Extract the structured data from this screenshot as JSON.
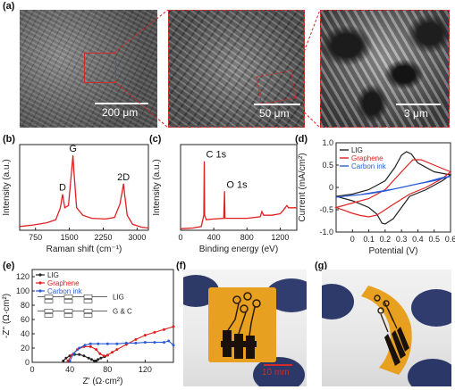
{
  "panels": {
    "a": "(a)",
    "b": "(b)",
    "c": "(c)",
    "d": "(d)",
    "e": "(e)",
    "f": "(f)",
    "g": "(g)"
  },
  "sem": {
    "scale1": "200 μm",
    "scale2": "50 μm",
    "scale3": "3 μm"
  },
  "photo": {
    "scale_label": "10 mm"
  },
  "colors": {
    "lig": "#222222",
    "graphene": "#e02020",
    "carbon_ink": "#2a5bd7",
    "annotation": "#d42a2a",
    "tape": "#e8a020"
  },
  "chart_data": [
    {
      "id": "b",
      "type": "line",
      "xlabel": "Raman shift (cm⁻¹)",
      "ylabel": "Intensity (a.u.)",
      "xlim": [
        400,
        3250
      ],
      "xticks": [
        "750",
        "1500",
        "2250",
        "3000"
      ],
      "peak_labels": [
        {
          "text": "D",
          "x": 1350
        },
        {
          "text": "G",
          "x": 1580
        },
        {
          "text": "2D",
          "x": 2700
        }
      ],
      "series": [
        {
          "x": [
            400,
            700,
            1000,
            1200,
            1300,
            1350,
            1400,
            1480,
            1560,
            1580,
            1600,
            1660,
            1800,
            2000,
            2300,
            2500,
            2620,
            2680,
            2700,
            2720,
            2780,
            2900,
            3100,
            3250
          ],
          "y": [
            0.05,
            0.07,
            0.1,
            0.14,
            0.3,
            0.48,
            0.3,
            0.33,
            0.86,
            1.0,
            0.8,
            0.3,
            0.2,
            0.16,
            0.15,
            0.17,
            0.35,
            0.55,
            0.62,
            0.5,
            0.2,
            0.08,
            0.04,
            0.03
          ],
          "color": "#e02020"
        }
      ]
    },
    {
      "id": "c",
      "type": "line",
      "xlabel": "Binding energy (eV)",
      "ylabel": "Intensity (a.u.)",
      "xlim": [
        0,
        1400
      ],
      "xticks": [
        "0",
        "400",
        "800",
        "1200"
      ],
      "peak_labels": [
        {
          "text": "C 1s",
          "x": 285
        },
        {
          "text": "O 1s",
          "x": 532
        }
      ],
      "series": [
        {
          "x": [
            0,
            150,
            250,
            280,
            285,
            290,
            310,
            400,
            520,
            530,
            535,
            545,
            600,
            800,
            960,
            980,
            1000,
            1100,
            1200,
            1240,
            1280,
            1300,
            1400
          ],
          "y": [
            0.02,
            0.03,
            0.05,
            0.2,
            0.92,
            0.2,
            0.14,
            0.15,
            0.16,
            0.52,
            0.16,
            0.16,
            0.16,
            0.16,
            0.18,
            0.25,
            0.2,
            0.2,
            0.22,
            0.27,
            0.33,
            0.3,
            0.3
          ],
          "color": "#e02020"
        }
      ]
    },
    {
      "id": "d",
      "type": "line",
      "xlabel": "Potential (V)",
      "ylabel": "Current (mA/cm²)",
      "xlim": [
        -0.1,
        0.6
      ],
      "ylim": [
        -1.0,
        1.0
      ],
      "xticks": [
        "0",
        "0.1",
        "0.2",
        "0.3",
        "0.4",
        "0.5",
        "0.6"
      ],
      "yticks": [
        "-1.0",
        "-0.5",
        "0",
        "0.5",
        "1.0"
      ],
      "legend": "top-left",
      "series": [
        {
          "name": "LIG",
          "color": "#222222",
          "x": [
            -0.1,
            0.0,
            0.1,
            0.2,
            0.26,
            0.3,
            0.33,
            0.36,
            0.4,
            0.5,
            0.6,
            0.55,
            0.45,
            0.35,
            0.3,
            0.25,
            0.2,
            0.18,
            0.15,
            0.1,
            0.0,
            -0.1
          ],
          "y": [
            -0.2,
            -0.15,
            -0.05,
            0.15,
            0.45,
            0.72,
            0.8,
            0.75,
            0.55,
            0.35,
            0.28,
            0.15,
            -0.05,
            -0.2,
            -0.45,
            -0.7,
            -0.82,
            -0.8,
            -0.6,
            -0.45,
            -0.3,
            -0.2
          ]
        },
        {
          "name": "Graphene",
          "color": "#e02020",
          "x": [
            -0.1,
            0.0,
            0.1,
            0.2,
            0.3,
            0.37,
            0.42,
            0.5,
            0.6,
            0.55,
            0.45,
            0.35,
            0.25,
            0.15,
            0.1,
            0.05,
            0.0,
            -0.1
          ],
          "y": [
            -0.45,
            -0.35,
            -0.25,
            -0.05,
            0.35,
            0.62,
            0.62,
            0.5,
            0.35,
            0.2,
            0.0,
            -0.15,
            -0.38,
            -0.62,
            -0.66,
            -0.63,
            -0.58,
            -0.45
          ]
        },
        {
          "name": "Carbon ink",
          "color": "#2a5bd7",
          "x": [
            -0.1,
            0.0,
            0.1,
            0.2,
            0.3,
            0.4,
            0.5,
            0.6,
            0.55,
            0.45,
            0.35,
            0.25,
            0.15,
            0.05,
            -0.1
          ],
          "y": [
            -0.22,
            -0.18,
            -0.14,
            -0.08,
            0.0,
            0.08,
            0.15,
            0.25,
            0.22,
            0.12,
            0.04,
            -0.04,
            -0.1,
            -0.16,
            -0.22
          ]
        }
      ]
    },
    {
      "id": "e",
      "type": "scatter",
      "xlabel": "Z' (Ω·cm²)",
      "ylabel": "-Z'' (Ω·cm²)",
      "xlim": [
        0,
        150
      ],
      "ylim": [
        0,
        130
      ],
      "xticks": [
        "0",
        "40",
        "80",
        "120"
      ],
      "yticks": [
        "0",
        "20",
        "40",
        "60",
        "80",
        "100",
        "120"
      ],
      "legend": "top-left",
      "circuit_labels": [
        "LIG",
        "G & C"
      ],
      "series": [
        {
          "name": "LIG",
          "color": "#222222",
          "x": [
            33,
            36,
            40,
            45,
            50,
            55,
            60,
            63,
            66,
            68,
            70,
            73,
            77,
            80
          ],
          "y": [
            2,
            6,
            9,
            11,
            11,
            9,
            6,
            4,
            2,
            2,
            4,
            6,
            8,
            10
          ]
        },
        {
          "name": "Graphene",
          "color": "#e02020",
          "x": [
            38,
            42,
            48,
            55,
            62,
            68,
            72,
            76,
            80,
            85,
            90,
            100,
            110,
            120,
            130,
            140,
            150
          ],
          "y": [
            2,
            10,
            18,
            22,
            22,
            18,
            12,
            9,
            10,
            14,
            18,
            25,
            32,
            38,
            42,
            46,
            50
          ]
        },
        {
          "name": "Carbon ink",
          "color": "#2a5bd7",
          "x": [
            40,
            44,
            50,
            56,
            62,
            70,
            80,
            90,
            100,
            110,
            120,
            130,
            140,
            145,
            150
          ],
          "y": [
            2,
            12,
            20,
            24,
            26,
            26,
            26,
            26,
            27,
            27,
            28,
            28,
            28,
            30,
            24
          ]
        }
      ]
    }
  ]
}
